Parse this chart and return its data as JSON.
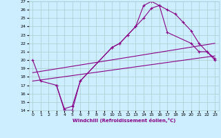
{
  "xlabel": "Windchill (Refroidissement éolien,°C)",
  "xlim": [
    -0.5,
    23.5
  ],
  "ylim": [
    14,
    27
  ],
  "yticks": [
    14,
    15,
    16,
    17,
    18,
    19,
    20,
    21,
    22,
    23,
    24,
    25,
    26,
    27
  ],
  "xticks": [
    0,
    1,
    2,
    3,
    4,
    5,
    6,
    7,
    8,
    9,
    10,
    11,
    12,
    13,
    14,
    15,
    16,
    17,
    18,
    19,
    20,
    21,
    22,
    23
  ],
  "line_color": "#880088",
  "bg_color": "#cceeff",
  "grid_color": "#aacccc",
  "line1_x": [
    0,
    1,
    3,
    4,
    5,
    6,
    10,
    11,
    12,
    13,
    14,
    15,
    16,
    17,
    20,
    21,
    22,
    23
  ],
  "line1_y": [
    20,
    17.5,
    17,
    14,
    14,
    17.5,
    21.5,
    22,
    23,
    24,
    26.5,
    27,
    26.5,
    23.3,
    22,
    21,
    21,
    20
  ],
  "line2_x": [
    0,
    23
  ],
  "line2_y": [
    17.5,
    20.5
  ],
  "line3_x": [
    0,
    23
  ],
  "line3_y": [
    18.5,
    22
  ],
  "line4_x": [
    3,
    4,
    5,
    6,
    10,
    11,
    12,
    13,
    14,
    15,
    16,
    17,
    18,
    19,
    20,
    21,
    22,
    23
  ],
  "line4_y": [
    17,
    14.2,
    14.5,
    17.5,
    21.5,
    22,
    23,
    24,
    25,
    26.2,
    26.5,
    26,
    25.5,
    24.5,
    23.5,
    22,
    21,
    20.2
  ]
}
